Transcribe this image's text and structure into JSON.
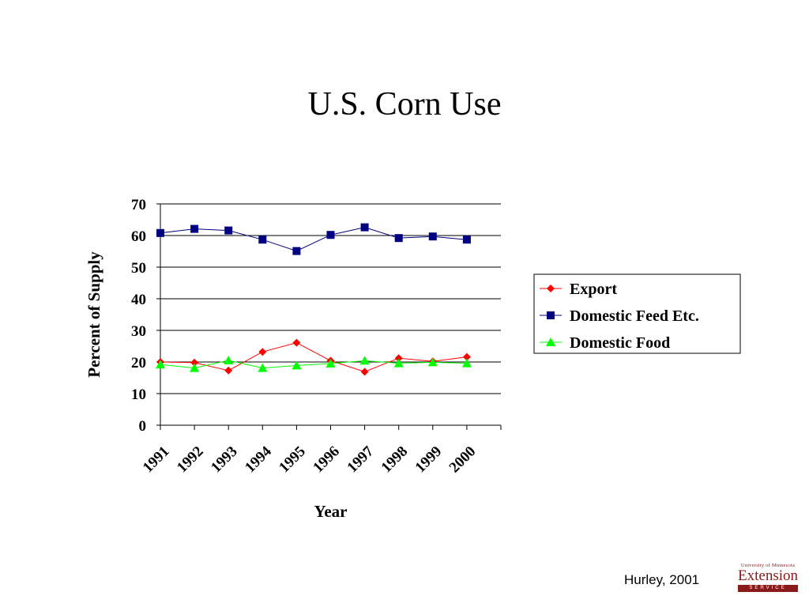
{
  "slide": {
    "title": "U.S. Corn Use",
    "citation": "Hurley, 2001"
  },
  "logo": {
    "university": "University of Minnesota",
    "name": "Extension",
    "service": "SERVICE"
  },
  "chart_data": {
    "type": "line",
    "title": "",
    "xlabel": "Year",
    "ylabel": "Percent of Supply",
    "categories": [
      "1991",
      "1992",
      "1993",
      "1994",
      "1995",
      "1996",
      "1997",
      "1998",
      "1999",
      "2000"
    ],
    "ylim": [
      0,
      70
    ],
    "yticks": [
      0,
      10,
      20,
      30,
      40,
      50,
      60,
      70
    ],
    "grid": "horizontal",
    "legend_position": "right",
    "series": [
      {
        "name": "Export",
        "color": "#ff0000",
        "marker": "diamond",
        "values": [
          20,
          19.8,
          17.3,
          23.2,
          26.1,
          20.4,
          16.9,
          21.2,
          20.2,
          21.6
        ]
      },
      {
        "name": "Domestic Feed Etc.",
        "color": "#000080",
        "marker": "square",
        "values": [
          60.8,
          62.1,
          61.6,
          58.7,
          55.1,
          60.2,
          62.6,
          59.2,
          59.7,
          58.7
        ]
      },
      {
        "name": "Domestic Food",
        "color": "#00ff00",
        "marker": "triangle",
        "values": [
          19.2,
          18.1,
          20.5,
          18.1,
          18.9,
          19.5,
          20.4,
          19.6,
          19.9,
          19.6
        ]
      }
    ]
  }
}
